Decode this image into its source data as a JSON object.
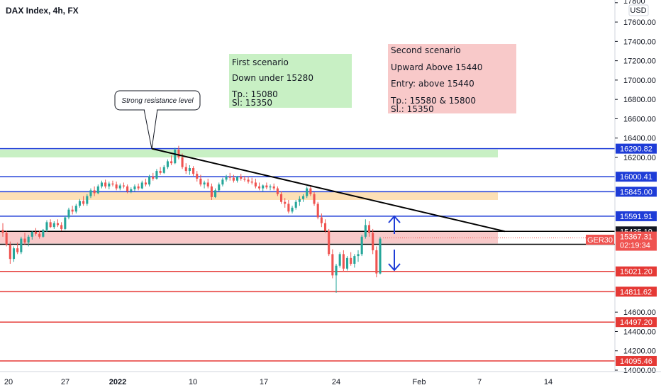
{
  "header": {
    "title": "DAX Index, 4h, FX"
  },
  "currency_button": {
    "label": "USD"
  },
  "symbol_badge": {
    "label": "GER30"
  },
  "countdown": {
    "label": "02:19:34"
  },
  "colors": {
    "up": "#26a69a",
    "down": "#ef5350",
    "blue_line": "#1e3cd7",
    "red_line": "#e53935",
    "green_zone": "#c8f0c4",
    "orange_zone": "#fde0b5",
    "red_zone": "#f8c9c9",
    "trendline": "#000000"
  },
  "scenarios": {
    "first": {
      "title": "First scenario",
      "line1": "Down under 15280",
      "line2": "Tp.: 15080",
      "line3": "Sl: 15350"
    },
    "second": {
      "title": "Second scenario",
      "line1": "Upward Above 15440",
      "line2": "Entry: above 15440",
      "line3": "Tp.: 15580 & 15800",
      "line4": "Sl.: 15350"
    }
  },
  "callout": {
    "text": "Strong resistance level"
  },
  "chart_data": {
    "type": "candlestick",
    "title": "DAX Index, 4h, FX",
    "ylim": [
      14000,
      17800
    ],
    "y_ticks": [
      14000,
      14200,
      14400,
      14600,
      16200,
      16400,
      16600,
      16800,
      17000,
      17200,
      17400,
      17600,
      17800
    ],
    "y_tick_labels": [
      "14000.00",
      "14200.00",
      "14400.00",
      "14600.00",
      "16200.00",
      "16400.00",
      "16600.00",
      "16800.00",
      "17000.00",
      "17200.00",
      "17400.00",
      "17600.00",
      "17800"
    ],
    "x_ticks": [
      {
        "label": "20",
        "bold": false
      },
      {
        "label": "27",
        "bold": false
      },
      {
        "label": "2022",
        "bold": true
      },
      {
        "label": "10",
        "bold": false
      },
      {
        "label": "17",
        "bold": false
      },
      {
        "label": "24",
        "bold": false
      },
      {
        "label": "Feb",
        "bold": false
      },
      {
        "label": "7",
        "bold": false
      },
      {
        "label": "14",
        "bold": false
      }
    ],
    "levels": [
      {
        "value": 16290.82,
        "label": "16290.82",
        "color": "blue",
        "tag": "blue"
      },
      {
        "value": 16000.41,
        "label": "16000.41",
        "color": "blue",
        "tag": "blue"
      },
      {
        "value": 15845.0,
        "label": "15845.00",
        "color": "blue",
        "tag": "blue"
      },
      {
        "value": 15591.91,
        "label": "15591.91",
        "color": "blue",
        "tag": "blue"
      },
      {
        "value": 15435.19,
        "label": "15435.19",
        "color": "black",
        "tag": "black"
      },
      {
        "value": 15301.82,
        "label": "15301.82",
        "color": "black",
        "tag": "black"
      },
      {
        "value": 15021.2,
        "label": "15021.20",
        "color": "red",
        "tag": "red"
      },
      {
        "value": 14811.62,
        "label": "14811.62",
        "color": "red",
        "tag": "red"
      },
      {
        "value": 14497.2,
        "label": "14497.20",
        "color": "red",
        "tag": "red"
      },
      {
        "value": 14095.46,
        "label": "14095.46",
        "color": "red",
        "tag": "red"
      }
    ],
    "last_price": {
      "value": 15367.31,
      "label": "15367.31"
    },
    "zones": [
      {
        "name": "resistance",
        "from": 16200,
        "to": 16280,
        "color": "green"
      },
      {
        "name": "supply",
        "from": 15760,
        "to": 15840,
        "color": "orange"
      },
      {
        "name": "range",
        "from": 15310,
        "to": 15435,
        "color": "red"
      }
    ],
    "trendline": {
      "from": {
        "date": "Jan 05 2022",
        "value": 16290.82
      },
      "to": {
        "date": "Feb 09 2022",
        "value": 15435.19
      }
    },
    "candles": [
      [
        15450,
        15520,
        15380,
        15420
      ],
      [
        15420,
        15440,
        15280,
        15300
      ],
      [
        15300,
        15330,
        15100,
        15150
      ],
      [
        15150,
        15280,
        15120,
        15260
      ],
      [
        15260,
        15320,
        15200,
        15220
      ],
      [
        15220,
        15380,
        15200,
        15360
      ],
      [
        15360,
        15420,
        15300,
        15320
      ],
      [
        15320,
        15400,
        15280,
        15380
      ],
      [
        15380,
        15440,
        15350,
        15430
      ],
      [
        15430,
        15470,
        15390,
        15410
      ],
      [
        15410,
        15440,
        15360,
        15380
      ],
      [
        15380,
        15460,
        15370,
        15450
      ],
      [
        15450,
        15550,
        15430,
        15530
      ],
      [
        15530,
        15560,
        15470,
        15480
      ],
      [
        15480,
        15540,
        15460,
        15520
      ],
      [
        15520,
        15560,
        15480,
        15500
      ],
      [
        15500,
        15530,
        15440,
        15460
      ],
      [
        15460,
        15600,
        15450,
        15580
      ],
      [
        15580,
        15680,
        15560,
        15660
      ],
      [
        15660,
        15700,
        15610,
        15640
      ],
      [
        15640,
        15720,
        15620,
        15700
      ],
      [
        15700,
        15770,
        15680,
        15750
      ],
      [
        15750,
        15800,
        15700,
        15720
      ],
      [
        15720,
        15820,
        15700,
        15800
      ],
      [
        15800,
        15880,
        15780,
        15860
      ],
      [
        15860,
        15900,
        15800,
        15830
      ],
      [
        15830,
        15920,
        15820,
        15900
      ],
      [
        15900,
        15960,
        15880,
        15940
      ],
      [
        15940,
        15970,
        15880,
        15900
      ],
      [
        15900,
        15950,
        15870,
        15930
      ],
      [
        15930,
        15960,
        15900,
        15920
      ],
      [
        15920,
        15950,
        15860,
        15880
      ],
      [
        15880,
        15930,
        15860,
        15910
      ],
      [
        15910,
        15940,
        15880,
        15900
      ],
      [
        15900,
        15920,
        15830,
        15850
      ],
      [
        15850,
        15890,
        15830,
        15870
      ],
      [
        15870,
        15920,
        15850,
        15900
      ],
      [
        15900,
        15930,
        15860,
        15880
      ],
      [
        15880,
        15960,
        15870,
        15940
      ],
      [
        15940,
        15980,
        15900,
        15920
      ],
      [
        15920,
        16020,
        15900,
        16000
      ],
      [
        16000,
        16040,
        15960,
        15980
      ],
      [
        15980,
        16080,
        15970,
        16060
      ],
      [
        16060,
        16100,
        16020,
        16040
      ],
      [
        16040,
        16120,
        16030,
        16100
      ],
      [
        16100,
        16180,
        16080,
        16160
      ],
      [
        16160,
        16220,
        16120,
        16140
      ],
      [
        16140,
        16300,
        16130,
        16280
      ],
      [
        16280,
        16320,
        16180,
        16200
      ],
      [
        16200,
        16240,
        16080,
        16100
      ],
      [
        16100,
        16140,
        16030,
        16060
      ],
      [
        16060,
        16120,
        16020,
        16090
      ],
      [
        16090,
        16110,
        16010,
        16030
      ],
      [
        16030,
        16060,
        15950,
        15980
      ],
      [
        15980,
        16020,
        15900,
        15920
      ],
      [
        15920,
        15960,
        15880,
        15940
      ],
      [
        15940,
        15980,
        15880,
        15900
      ],
      [
        15900,
        15930,
        15760,
        15790
      ],
      [
        15790,
        15880,
        15780,
        15860
      ],
      [
        15860,
        15940,
        15850,
        15920
      ],
      [
        15920,
        15990,
        15900,
        15970
      ],
      [
        15970,
        16020,
        15950,
        16000
      ],
      [
        16000,
        16040,
        15960,
        15990
      ],
      [
        15990,
        16020,
        15940,
        15960
      ],
      [
        15960,
        16010,
        15940,
        16000
      ],
      [
        16000,
        16030,
        15960,
        15980
      ],
      [
        15980,
        16010,
        15950,
        15970
      ],
      [
        15970,
        16000,
        15930,
        15950
      ],
      [
        15950,
        15990,
        15920,
        15940
      ],
      [
        15940,
        15980,
        15880,
        15900
      ],
      [
        15900,
        15940,
        15860,
        15880
      ],
      [
        15880,
        15920,
        15850,
        15910
      ],
      [
        15910,
        15940,
        15870,
        15890
      ],
      [
        15890,
        15920,
        15860,
        15900
      ],
      [
        15900,
        15930,
        15860,
        15880
      ],
      [
        15880,
        15900,
        15800,
        15820
      ],
      [
        15820,
        15850,
        15720,
        15740
      ],
      [
        15740,
        15780,
        15680,
        15720
      ],
      [
        15720,
        15760,
        15620,
        15640
      ],
      [
        15640,
        15700,
        15620,
        15680
      ],
      [
        15680,
        15760,
        15660,
        15740
      ],
      [
        15740,
        15800,
        15700,
        15770
      ],
      [
        15770,
        15820,
        15740,
        15800
      ],
      [
        15800,
        15900,
        15780,
        15880
      ],
      [
        15880,
        15910,
        15800,
        15820
      ],
      [
        15820,
        15840,
        15700,
        15720
      ],
      [
        15720,
        15740,
        15560,
        15580
      ],
      [
        15580,
        15620,
        15480,
        15520
      ],
      [
        15520,
        15560,
        15420,
        15440
      ],
      [
        15440,
        15460,
        15180,
        15200
      ],
      [
        15200,
        15250,
        14950,
        14980
      ],
      [
        14980,
        15100,
        14800,
        15080
      ],
      [
        15080,
        15220,
        15060,
        15200
      ],
      [
        15200,
        15240,
        15020,
        15050
      ],
      [
        15050,
        15180,
        15030,
        15160
      ],
      [
        15160,
        15220,
        15080,
        15100
      ],
      [
        15100,
        15200,
        15060,
        15180
      ],
      [
        15180,
        15240,
        15120,
        15200
      ],
      [
        15200,
        15400,
        15180,
        15380
      ],
      [
        15380,
        15560,
        15360,
        15500
      ],
      [
        15500,
        15540,
        15380,
        15420
      ],
      [
        15420,
        15460,
        15200,
        15240
      ],
      [
        15240,
        15280,
        14960,
        15000
      ],
      [
        15000,
        15380,
        14990,
        15360
      ]
    ]
  }
}
